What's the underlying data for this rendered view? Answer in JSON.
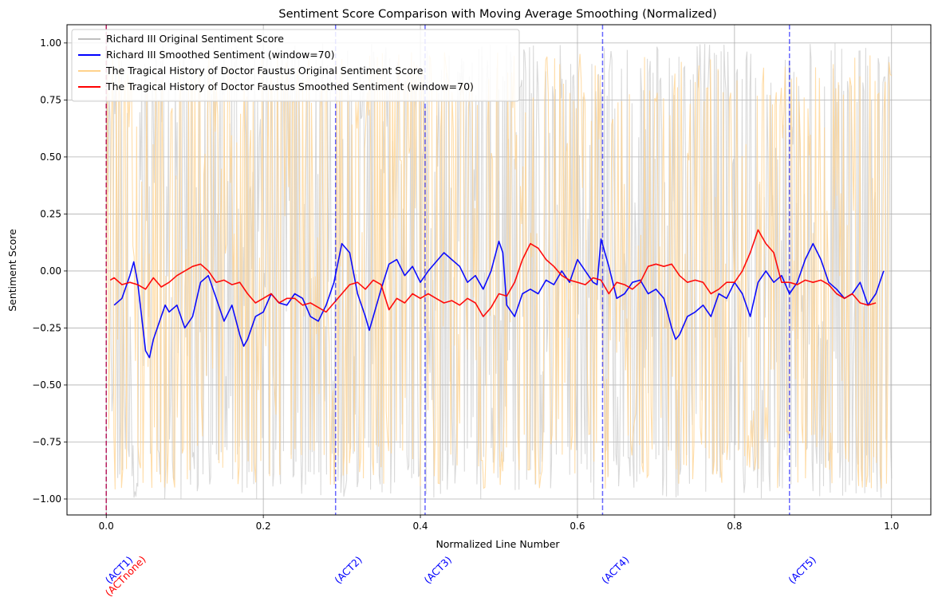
{
  "chart_data": {
    "type": "line",
    "title": "Sentiment Score Comparison with Moving Average Smoothing (Normalized)",
    "xlabel": "Normalized Line Number",
    "ylabel": "Sentiment Score",
    "xlim": [
      -0.05,
      1.05
    ],
    "ylim": [
      -1.07,
      1.08
    ],
    "xticks": [
      0.0,
      0.2,
      0.4,
      0.6,
      0.8,
      1.0
    ],
    "xtick_labels": [
      "0.0",
      "0.2",
      "0.4",
      "0.6",
      "0.8",
      "1.0"
    ],
    "yticks": [
      -1.0,
      -0.75,
      -0.5,
      -0.25,
      0.0,
      0.25,
      0.5,
      0.75,
      1.0
    ],
    "ytick_labels": [
      "−1.00",
      "−0.75",
      "−0.50",
      "−0.25",
      "0.00",
      "0.25",
      "0.50",
      "0.75",
      "1.00"
    ],
    "grid": true,
    "legend_position": "upper-left",
    "series": [
      {
        "name": "Richard III Original Sentiment Score",
        "color": "#c0c0c0",
        "style": "raw-noisy",
        "range": [
          -1.0,
          1.0
        ],
        "x_span": [
          0.0,
          1.0
        ],
        "note_values": "dense raw per-line scores oscillating between about -0.95 and 0.95"
      },
      {
        "name": "Richard III Smoothed Sentiment (window=70)",
        "color": "#0000ff",
        "x": [
          0.01,
          0.02,
          0.03,
          0.035,
          0.04,
          0.05,
          0.055,
          0.06,
          0.07,
          0.075,
          0.08,
          0.09,
          0.1,
          0.11,
          0.12,
          0.13,
          0.14,
          0.15,
          0.16,
          0.17,
          0.175,
          0.18,
          0.19,
          0.2,
          0.21,
          0.22,
          0.23,
          0.24,
          0.25,
          0.26,
          0.27,
          0.28,
          0.29,
          0.3,
          0.31,
          0.32,
          0.33,
          0.335,
          0.34,
          0.35,
          0.36,
          0.37,
          0.38,
          0.39,
          0.4,
          0.41,
          0.42,
          0.43,
          0.44,
          0.45,
          0.46,
          0.47,
          0.48,
          0.49,
          0.5,
          0.505,
          0.51,
          0.52,
          0.53,
          0.54,
          0.55,
          0.56,
          0.57,
          0.58,
          0.59,
          0.6,
          0.61,
          0.62,
          0.625,
          0.63,
          0.64,
          0.65,
          0.66,
          0.67,
          0.68,
          0.69,
          0.7,
          0.71,
          0.72,
          0.725,
          0.73,
          0.74,
          0.75,
          0.76,
          0.77,
          0.78,
          0.79,
          0.8,
          0.81,
          0.82,
          0.83,
          0.84,
          0.85,
          0.86,
          0.87,
          0.88,
          0.89,
          0.9,
          0.91,
          0.92,
          0.93,
          0.94,
          0.95,
          0.96,
          0.97,
          0.98,
          0.99
        ],
        "values": [
          -0.15,
          -0.12,
          -0.02,
          0.04,
          -0.05,
          -0.35,
          -0.38,
          -0.3,
          -0.2,
          -0.15,
          -0.18,
          -0.15,
          -0.25,
          -0.2,
          -0.05,
          -0.02,
          -0.12,
          -0.22,
          -0.15,
          -0.28,
          -0.33,
          -0.3,
          -0.2,
          -0.18,
          -0.1,
          -0.14,
          -0.15,
          -0.1,
          -0.12,
          -0.2,
          -0.22,
          -0.15,
          -0.05,
          0.12,
          0.08,
          -0.1,
          -0.2,
          -0.26,
          -0.2,
          -0.08,
          0.03,
          0.05,
          -0.02,
          0.02,
          -0.05,
          0.0,
          0.04,
          0.08,
          0.05,
          0.02,
          -0.05,
          -0.02,
          -0.08,
          0.0,
          0.13,
          0.08,
          -0.15,
          -0.2,
          -0.1,
          -0.08,
          -0.1,
          -0.04,
          -0.06,
          0.0,
          -0.05,
          0.05,
          0.0,
          -0.05,
          -0.06,
          0.14,
          0.02,
          -0.12,
          -0.1,
          -0.05,
          -0.04,
          -0.1,
          -0.08,
          -0.12,
          -0.25,
          -0.3,
          -0.28,
          -0.2,
          -0.18,
          -0.15,
          -0.2,
          -0.1,
          -0.12,
          -0.05,
          -0.1,
          -0.2,
          -0.05,
          0.0,
          -0.05,
          -0.02,
          -0.1,
          -0.05,
          0.05,
          0.12,
          0.05,
          -0.05,
          -0.08,
          -0.12,
          -0.1,
          -0.05,
          -0.15,
          -0.1,
          0.0
        ]
      },
      {
        "name": "The Tragical History of Doctor Faustus Original Sentiment Score",
        "color": "#ffd28c",
        "style": "raw-noisy",
        "range": [
          -0.96,
          0.96
        ],
        "x_span": [
          0.0,
          1.0
        ],
        "note_values": "dense raw per-line scores oscillating between about -0.95 and 0.95"
      },
      {
        "name": "The Tragical History of Doctor Faustus Smoothed Sentiment (window=70)",
        "color": "#ff0000",
        "x": [
          0.005,
          0.01,
          0.02,
          0.03,
          0.04,
          0.05,
          0.06,
          0.07,
          0.08,
          0.09,
          0.1,
          0.11,
          0.12,
          0.13,
          0.14,
          0.15,
          0.16,
          0.17,
          0.18,
          0.19,
          0.2,
          0.21,
          0.22,
          0.23,
          0.24,
          0.25,
          0.26,
          0.27,
          0.28,
          0.29,
          0.3,
          0.31,
          0.32,
          0.33,
          0.34,
          0.35,
          0.36,
          0.37,
          0.38,
          0.39,
          0.4,
          0.41,
          0.42,
          0.43,
          0.44,
          0.45,
          0.46,
          0.47,
          0.48,
          0.49,
          0.5,
          0.51,
          0.52,
          0.53,
          0.54,
          0.55,
          0.56,
          0.57,
          0.58,
          0.59,
          0.6,
          0.61,
          0.62,
          0.63,
          0.64,
          0.65,
          0.66,
          0.67,
          0.68,
          0.69,
          0.7,
          0.71,
          0.72,
          0.73,
          0.74,
          0.75,
          0.76,
          0.77,
          0.78,
          0.79,
          0.8,
          0.81,
          0.82,
          0.83,
          0.84,
          0.85,
          0.86,
          0.87,
          0.88,
          0.89,
          0.9,
          0.91,
          0.92,
          0.93,
          0.94,
          0.95,
          0.96,
          0.97,
          0.98
        ],
        "values": [
          -0.04,
          -0.03,
          -0.06,
          -0.05,
          -0.06,
          -0.08,
          -0.03,
          -0.07,
          -0.05,
          -0.02,
          0.0,
          0.02,
          0.03,
          0.0,
          -0.05,
          -0.04,
          -0.06,
          -0.05,
          -0.1,
          -0.14,
          -0.12,
          -0.1,
          -0.14,
          -0.12,
          -0.12,
          -0.15,
          -0.14,
          -0.16,
          -0.18,
          -0.14,
          -0.1,
          -0.06,
          -0.05,
          -0.08,
          -0.04,
          -0.06,
          -0.17,
          -0.12,
          -0.14,
          -0.1,
          -0.12,
          -0.1,
          -0.12,
          -0.14,
          -0.13,
          -0.15,
          -0.12,
          -0.14,
          -0.2,
          -0.16,
          -0.1,
          -0.11,
          -0.05,
          0.05,
          0.12,
          0.1,
          0.05,
          0.02,
          -0.02,
          -0.04,
          -0.05,
          -0.06,
          -0.03,
          -0.04,
          -0.1,
          -0.05,
          -0.06,
          -0.08,
          -0.05,
          0.02,
          0.03,
          0.02,
          0.03,
          -0.02,
          -0.05,
          -0.04,
          -0.05,
          -0.1,
          -0.08,
          -0.05,
          -0.05,
          0.0,
          0.08,
          0.18,
          0.12,
          0.08,
          -0.05,
          -0.05,
          -0.06,
          -0.04,
          -0.05,
          -0.04,
          -0.06,
          -0.1,
          -0.12,
          -0.1,
          -0.14,
          -0.15,
          -0.14
        ]
      }
    ],
    "vertical_lines": [
      {
        "x": 0.0,
        "color": "#0000ff",
        "label": "(ACT1)"
      },
      {
        "x": 0.0,
        "color": "#ff0000",
        "label": "(ACTnone)"
      },
      {
        "x": 0.292,
        "color": "#0000ff",
        "label": "(ACT2)"
      },
      {
        "x": 0.406,
        "color": "#0000ff",
        "label": "(ACT3)"
      },
      {
        "x": 0.632,
        "color": "#0000ff",
        "label": "(ACT4)"
      },
      {
        "x": 0.87,
        "color": "#0000ff",
        "label": "(ACT5)"
      }
    ]
  }
}
